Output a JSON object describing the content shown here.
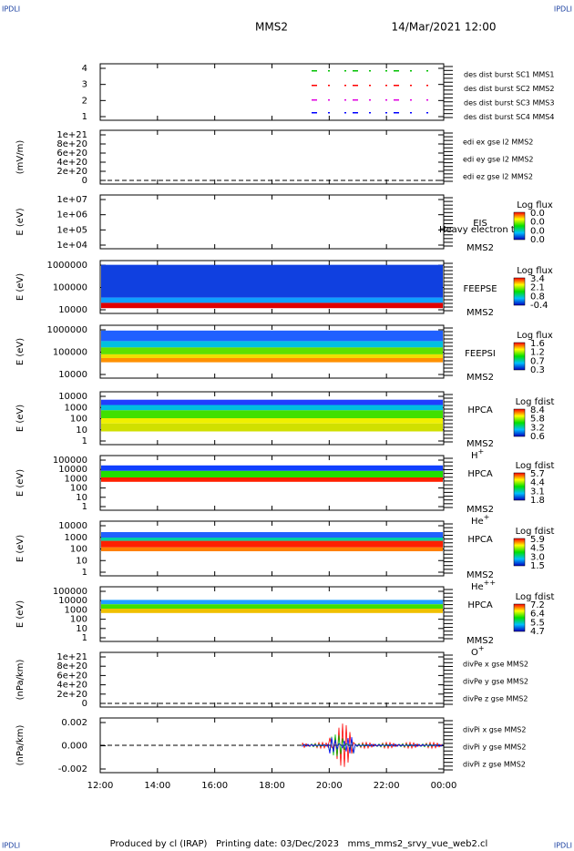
{
  "header": {
    "logo_left": "IPDLI",
    "logo_right": "IPDLI",
    "mission": "MMS2",
    "date": "14/Mar/2021 12:00"
  },
  "footer": {
    "logo_left": "IPDLI",
    "logo_right": "IPDLI",
    "text": "Produced by cl (IRAP)   Printing date: 03/Dec/2023   mms_mms2_srvy_vue_web2.cl"
  },
  "xaxis": {
    "ticks": [
      "12:00",
      "14:00",
      "16:00",
      "18:00",
      "20:00",
      "22:00",
      "00:00"
    ]
  },
  "panels": [
    {
      "kind": "line",
      "yticks": [
        "1",
        "2",
        "3",
        "4"
      ],
      "legend": [
        {
          "text": "des dist burst SC1 MMS1",
          "color": "#0000ff"
        },
        {
          "text": "des dist burst SC2 MMS2",
          "color": "#e000e0"
        },
        {
          "text": "des dist burst SC3 MMS3",
          "color": "#ff0000"
        },
        {
          "text": "des dist burst SC4 MMS4",
          "color": "#00c000"
        }
      ]
    },
    {
      "kind": "line",
      "ylabel": "(mV/m)",
      "yticks": [
        "0",
        "2e+20",
        "4e+20",
        "6e+20",
        "8e+20",
        "1e+21"
      ],
      "legend": [
        {
          "text": "edi ex gse l2 MMS2",
          "color": "#ff0000"
        },
        {
          "text": "edi ey gse l2 MMS2",
          "color": "#00c000"
        },
        {
          "text": "edi ez gse l2 MMS2",
          "color": "#0000ff"
        }
      ]
    },
    {
      "kind": "spec",
      "ylabel": "E (eV)",
      "yticks": [
        "1e+04",
        "1e+05",
        "1e+06",
        "1e+07"
      ],
      "instrument": "EIS",
      "note": "Heavy electron to",
      "mission": "MMS2",
      "cbar_title": "Log flux",
      "cbar_ticks": [
        "0.0",
        "0.0",
        "0.0",
        "0.0"
      ]
    },
    {
      "kind": "spec",
      "ylabel": "E (eV)",
      "yticks": [
        "10000",
        "100000",
        "1000000"
      ],
      "instrument": "FEEPSE",
      "mission": "MMS2",
      "cbar_title": "Log flux",
      "cbar_ticks": [
        "3.4",
        "2.1",
        "0.8",
        "-0.4"
      ]
    },
    {
      "kind": "spec",
      "ylabel": "E (eV)",
      "yticks": [
        "10000",
        "100000",
        "1000000"
      ],
      "instrument": "FEEPSI",
      "mission": "MMS2",
      "cbar_title": "Log flux",
      "cbar_ticks": [
        "1.6",
        "1.2",
        "0.7",
        "0.3"
      ]
    },
    {
      "kind": "spec",
      "ylabel": "E (eV)",
      "yticks": [
        "1",
        "10",
        "100",
        "1000",
        "10000"
      ],
      "instrument": "HPCA",
      "mission": "MMS2",
      "species": {
        "base": "H",
        "sup": "+"
      },
      "cbar_title": "Log fdist",
      "cbar_ticks": [
        "8.4",
        "5.8",
        "3.2",
        "0.6"
      ]
    },
    {
      "kind": "spec",
      "ylabel": "E (eV)",
      "yticks": [
        "1",
        "10",
        "100",
        "1000",
        "10000",
        "100000"
      ],
      "instrument": "HPCA",
      "mission": "MMS2",
      "species": {
        "base": "He",
        "sup": "+"
      },
      "cbar_title": "Log fdist",
      "cbar_ticks": [
        "5.7",
        "4.4",
        "3.1",
        "1.8"
      ]
    },
    {
      "kind": "spec",
      "ylabel": "E (eV)",
      "yticks": [
        "1",
        "10",
        "100",
        "1000",
        "10000"
      ],
      "instrument": "HPCA",
      "mission": "MMS2",
      "species": {
        "base": "He",
        "sup": "++"
      },
      "cbar_title": "Log fdist",
      "cbar_ticks": [
        "5.9",
        "4.5",
        "3.0",
        "1.5"
      ]
    },
    {
      "kind": "spec",
      "ylabel": "E (eV)",
      "yticks": [
        "1",
        "10",
        "100",
        "1000",
        "10000",
        "100000"
      ],
      "instrument": "HPCA",
      "mission": "MMS2",
      "species": {
        "base": "O",
        "sup": "+"
      },
      "cbar_title": "Log fdist",
      "cbar_ticks": [
        "7.2",
        "6.4",
        "5.5",
        "4.7"
      ]
    },
    {
      "kind": "line",
      "ylabel": "(nPa/km)",
      "yticks": [
        "0",
        "2e+20",
        "4e+20",
        "6e+20",
        "8e+20",
        "1e+21"
      ],
      "legend": [
        {
          "text": "divPe x gse MMS2",
          "color": "#ff0000"
        },
        {
          "text": "divPe y gse MMS2",
          "color": "#00c000"
        },
        {
          "text": "divPe z gse MMS2",
          "color": "#0000ff"
        }
      ]
    },
    {
      "kind": "line",
      "ylabel": "(nPa/km)",
      "yticks": [
        "-0.002",
        "0.000",
        "0.002"
      ],
      "legend": [
        {
          "text": "divPi x gse MMS2",
          "color": "#ff0000"
        },
        {
          "text": "divPi y gse MMS2",
          "color": "#00c000"
        },
        {
          "text": "divPi z gse MMS2",
          "color": "#0000ff"
        }
      ]
    }
  ]
}
